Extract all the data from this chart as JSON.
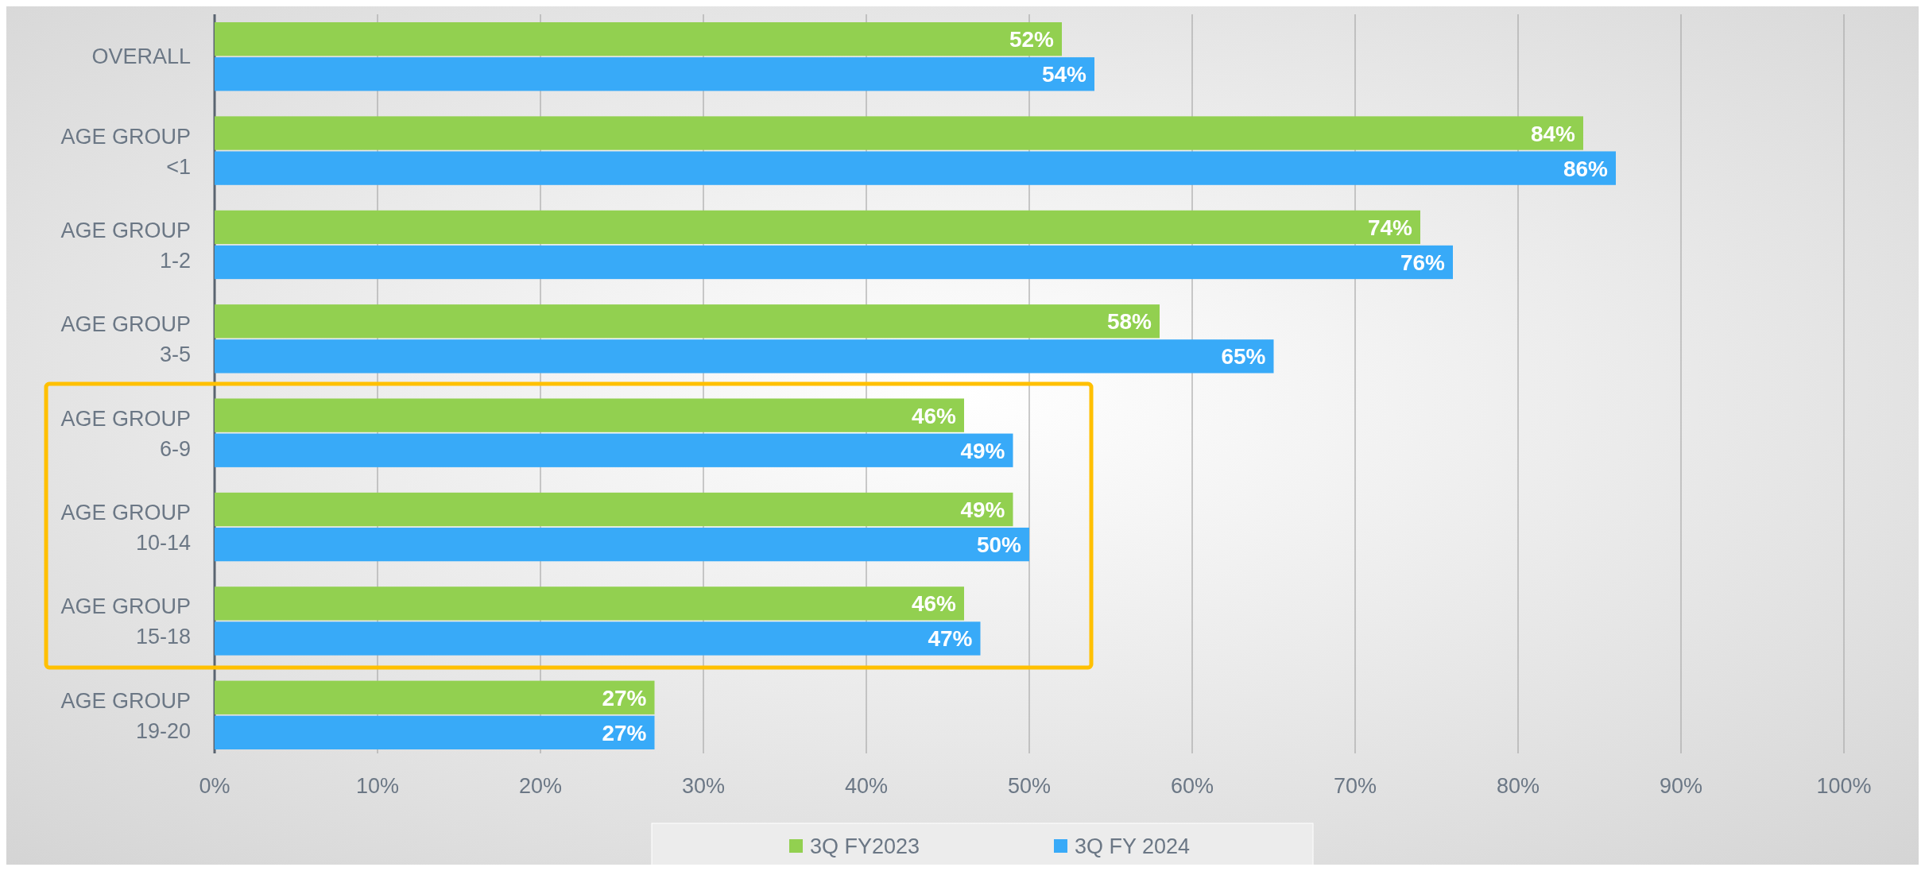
{
  "chart_data": {
    "type": "bar",
    "orientation": "horizontal",
    "categories": [
      "OVERALL",
      "AGE GROUP <1",
      "AGE GROUP 1-2",
      "AGE GROUP 3-5",
      "AGE GROUP 6-9",
      "AGE GROUP 10-14",
      "AGE GROUP 15-18",
      "AGE GROUP 19-20"
    ],
    "series": [
      {
        "name": "3Q FY2023",
        "color": "#92d050",
        "values": [
          52,
          84,
          74,
          58,
          46,
          49,
          46,
          27
        ],
        "value_labels": [
          "52%",
          "84%",
          "74%",
          "58%",
          "46%",
          "49%",
          "46%",
          "27%"
        ]
      },
      {
        "name": "3Q FY 2024",
        "color": "#38aaf8",
        "values": [
          54,
          86,
          76,
          65,
          49,
          50,
          47,
          27
        ],
        "value_labels": [
          "54%",
          "86%",
          "76%",
          "65%",
          "49%",
          "50%",
          "47%",
          "27%"
        ]
      }
    ],
    "xlim": [
      0,
      100
    ],
    "xticks": [
      {
        "value": 0,
        "label": "0%"
      },
      {
        "value": 10,
        "label": "10%"
      },
      {
        "value": 20,
        "label": "20%"
      },
      {
        "value": 30,
        "label": "30%"
      },
      {
        "value": 40,
        "label": "40%"
      },
      {
        "value": 50,
        "label": "50%"
      },
      {
        "value": 60,
        "label": "60%"
      },
      {
        "value": 70,
        "label": "70%"
      },
      {
        "value": 80,
        "label": "80%"
      },
      {
        "value": 90,
        "label": "90%"
      },
      {
        "value": 100,
        "label": "100%"
      }
    ],
    "grid": "x",
    "legend": "bottom"
  }
}
